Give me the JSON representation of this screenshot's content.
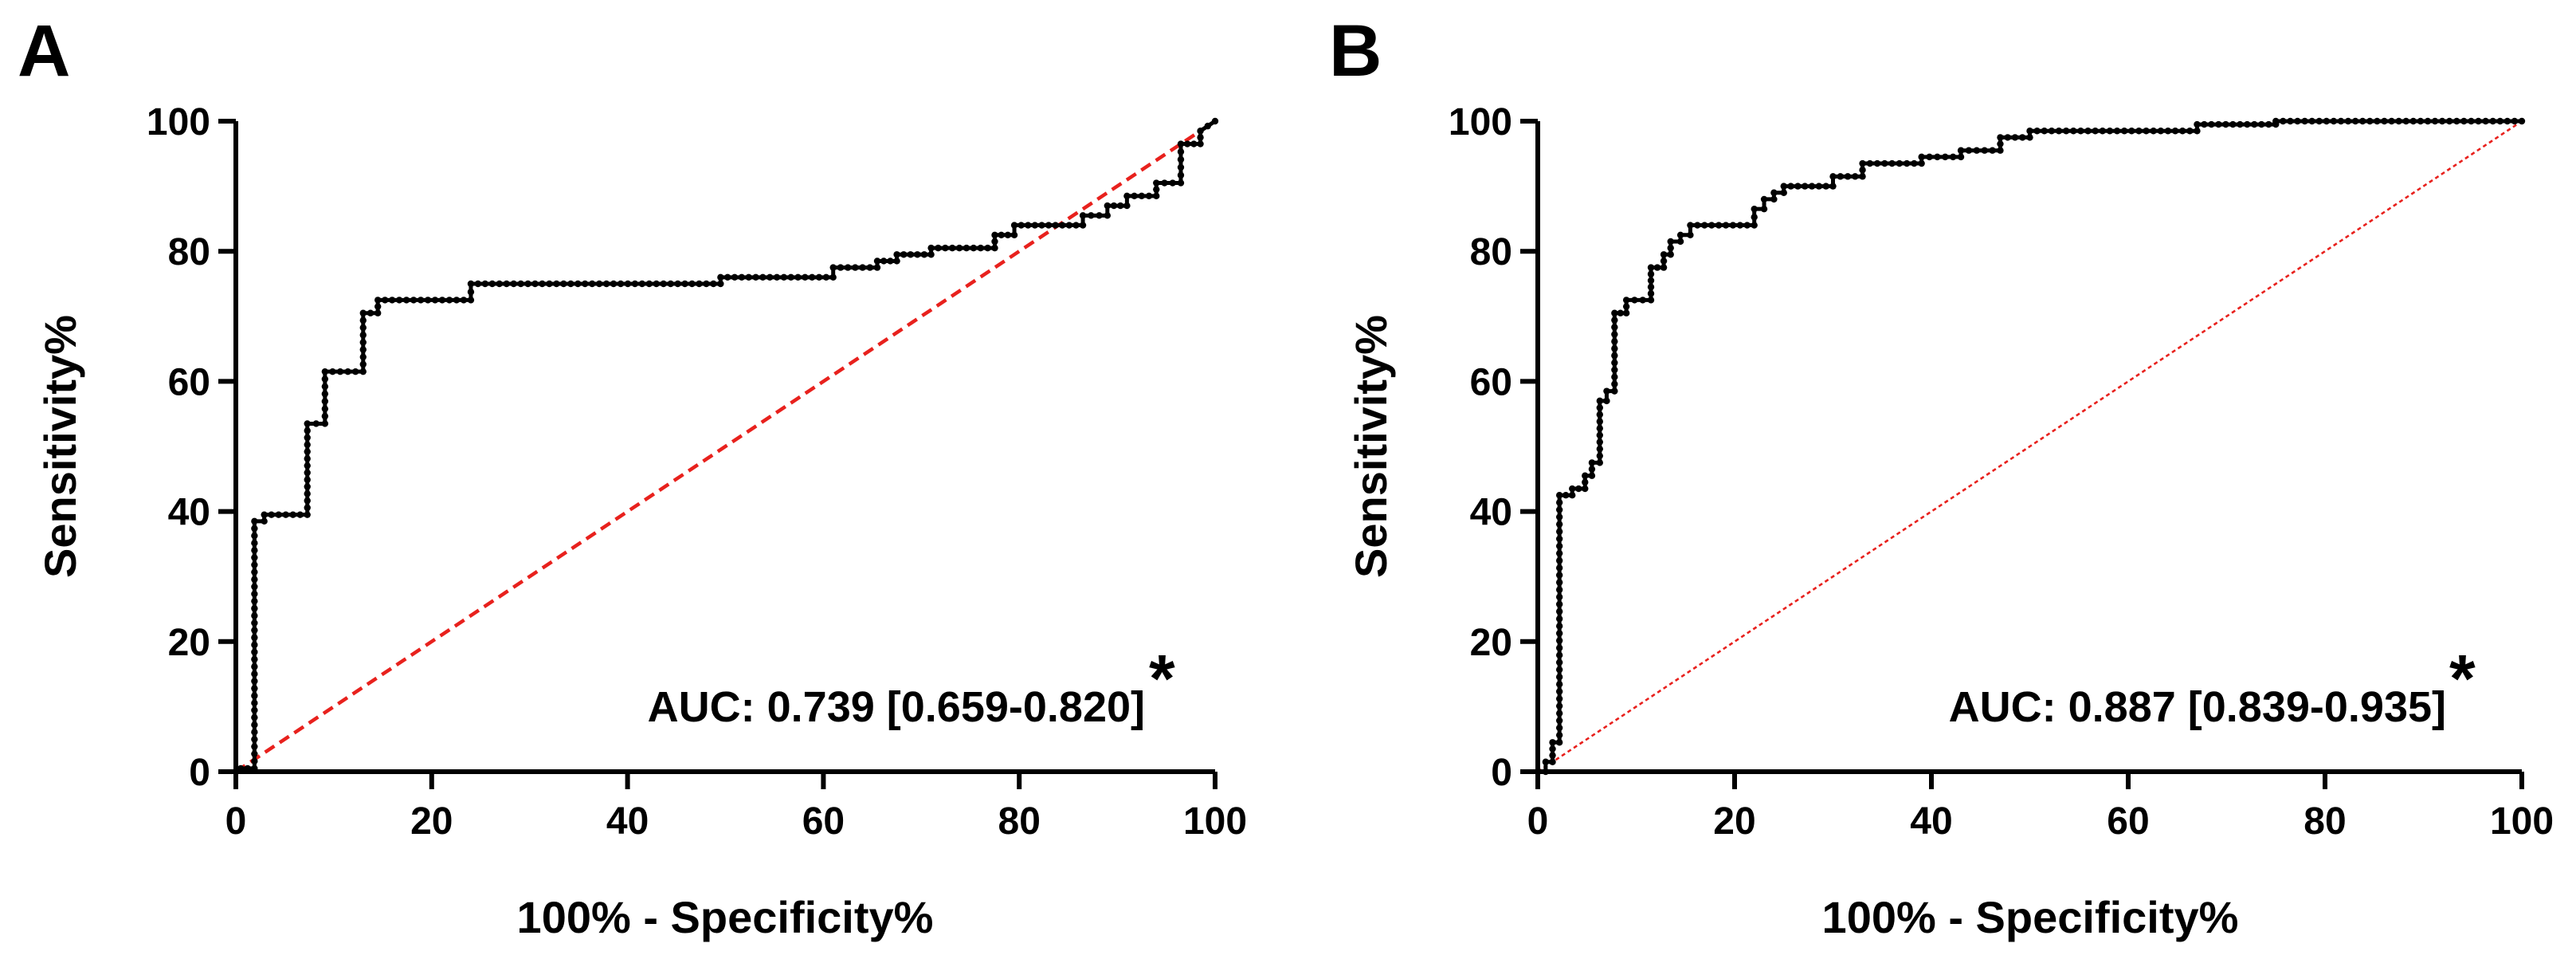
{
  "panels": [
    {
      "letter": "A",
      "auc_text": "AUC: 0.739 [0.659-0.820]",
      "auc_mark": "*",
      "diagonal_color": "#e8211d",
      "curve_color": "#000000"
    },
    {
      "letter": "B",
      "auc_text": "AUC: 0.887 [0.839-0.935]",
      "auc_mark": "*",
      "diagonal_color": "#e8211d",
      "curve_color": "#000000"
    }
  ],
  "chart_data": [
    {
      "type": "line",
      "xlabel": "100% - Specificity%",
      "ylabel": "Sensitivity%",
      "xlim": [
        0,
        100
      ],
      "ylim": [
        0,
        100
      ],
      "xticks": [
        0,
        20,
        40,
        60,
        80,
        100
      ],
      "yticks": [
        0,
        20,
        40,
        60,
        80,
        100
      ],
      "annotation": "AUC: 0.739 [0.659-0.820]*",
      "series": [
        {
          "x": [
            0.5,
            1.9,
            1.9,
            2.9,
            2.9,
            7.3,
            7.3,
            9.1,
            9.1,
            13.0,
            13.0,
            14.5,
            14.5,
            24.0,
            24.0,
            49.5,
            49.5,
            61.0,
            61.0,
            65.5,
            65.5,
            67.5,
            67.5,
            71.0,
            71.0,
            77.5,
            77.5,
            79.5,
            79.5,
            86.5,
            86.5,
            89.0,
            89.0,
            91.0,
            91.0,
            94.0,
            94.0,
            96.5,
            96.5,
            98.5,
            98.5,
            100
          ],
          "y": [
            0.5,
            0.5,
            38.5,
            38.5,
            39.5,
            39.5,
            53.5,
            53.5,
            61.5,
            61.5,
            70.5,
            70.5,
            72.5,
            72.5,
            75,
            75,
            76,
            76,
            77.5,
            77.5,
            78.5,
            78.5,
            79.5,
            79.5,
            80.5,
            80.5,
            82.5,
            82.5,
            84,
            84,
            85.5,
            85.5,
            87,
            87,
            88.5,
            88.5,
            90.5,
            90.5,
            96.5,
            96.5,
            98.5,
            100
          ]
        },
        {
          "x": [
            0,
            100
          ],
          "y": [
            0,
            100
          ]
        }
      ]
    },
    {
      "type": "line",
      "xlabel": "100% - Specificity%",
      "ylabel": "Sensitivity%",
      "xlim": [
        0,
        100
      ],
      "ylim": [
        0,
        100
      ],
      "xticks": [
        0,
        20,
        40,
        60,
        80,
        100
      ],
      "yticks": [
        0,
        20,
        40,
        60,
        80,
        100
      ],
      "annotation": "AUC: 0.887 [0.839-0.935]*",
      "series": [
        {
          "x": [
            0,
            0.8,
            0.8,
            1.5,
            1.5,
            2.2,
            2.2,
            3.5,
            3.5,
            4.8,
            4.8,
            5.5,
            5.5,
            6.3,
            6.3,
            7.0,
            7.0,
            7.8,
            7.8,
            9.0,
            9.0,
            11.5,
            11.5,
            12.8,
            12.8,
            13.5,
            13.5,
            14.5,
            14.5,
            15.5,
            15.5,
            22.0,
            22.0,
            23.0,
            23.0,
            24.0,
            24.0,
            25.0,
            25.0,
            30.0,
            30.0,
            33.0,
            33.0,
            39.0,
            39.0,
            43.0,
            43.0,
            47.0,
            47.0,
            50.0,
            50.0,
            67.0,
            67.0,
            75.0,
            75.0,
            100
          ],
          "y": [
            0,
            0,
            1.5,
            1.5,
            4.5,
            4.5,
            42.5,
            42.5,
            43.5,
            43.5,
            45.5,
            45.5,
            47.5,
            47.5,
            57,
            57,
            58.5,
            58.5,
            70.5,
            70.5,
            72.5,
            72.5,
            77.5,
            77.5,
            79.5,
            79.5,
            81.5,
            81.5,
            82.5,
            82.5,
            84,
            84,
            86.5,
            86.5,
            88,
            88,
            89,
            89,
            90,
            90,
            91.5,
            91.5,
            93.5,
            93.5,
            94.5,
            94.5,
            95.5,
            95.5,
            97.5,
            97.5,
            98.5,
            98.5,
            99.5,
            99.5,
            100,
            100
          ]
        },
        {
          "x": [
            0,
            100
          ],
          "y": [
            0,
            100
          ]
        }
      ]
    }
  ]
}
